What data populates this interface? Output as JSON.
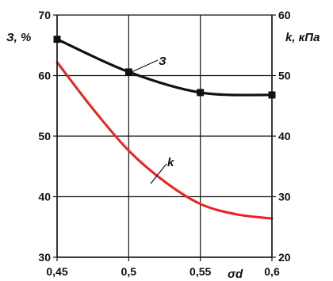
{
  "chart_data": {
    "type": "line",
    "x": [
      0.45,
      0.5,
      0.55,
      0.6
    ],
    "x_tick_labels": [
      "0,45",
      "0,5",
      "0,55",
      "0,6"
    ],
    "xlim": [
      0.45,
      0.6
    ],
    "xlabel": "σd",
    "left_axis": {
      "label": "З, %",
      "ylim": [
        30,
        70
      ],
      "tick_values": [
        30,
        40,
        50,
        60,
        70
      ],
      "tick_labels": [
        "30",
        "40",
        "50",
        "60",
        "70"
      ]
    },
    "right_axis": {
      "label": "k, кПа",
      "ylim": [
        20,
        60
      ],
      "tick_values": [
        20,
        30,
        40,
        50,
        60
      ],
      "tick_labels": [
        "20",
        "30",
        "40",
        "50",
        "60"
      ]
    },
    "grid": true,
    "series": [
      {
        "name": "З",
        "axis": "left",
        "color": "#111111",
        "markers": true,
        "x": [
          0.45,
          0.5,
          0.55,
          0.6
        ],
        "values": [
          66,
          60.6,
          57.2,
          56.8
        ]
      },
      {
        "name": "k",
        "axis": "right",
        "color": "#e8241f",
        "markers": false,
        "x": [
          0.45,
          0.475,
          0.5,
          0.525,
          0.55,
          0.575,
          0.6
        ],
        "values": [
          52.2,
          44.5,
          37.6,
          32.5,
          28.8,
          27.1,
          26.4
        ]
      }
    ]
  }
}
